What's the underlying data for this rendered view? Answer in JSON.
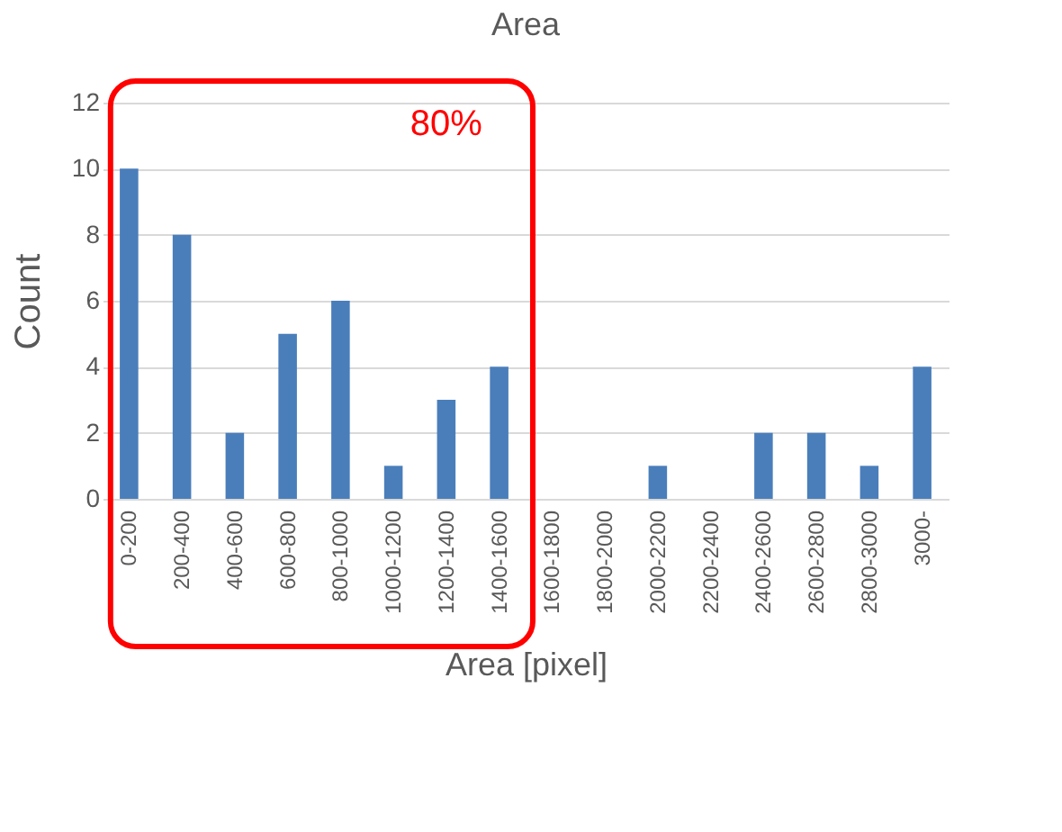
{
  "chart_data": {
    "type": "bar",
    "title": "Area",
    "xlabel": "Area [pixel]",
    "ylabel": "Count",
    "categories": [
      "0-200",
      "200-400",
      "400-600",
      "600-800",
      "800-1000",
      "1000-1200",
      "1200-1400",
      "1400-1600",
      "1600-1800",
      "1800-2000",
      "2000-2200",
      "2200-2400",
      "2400-2600",
      "2600-2800",
      "2800-3000",
      "3000-"
    ],
    "values": [
      10,
      8,
      2,
      5,
      6,
      1,
      3,
      4,
      0,
      0,
      1,
      0,
      2,
      2,
      1,
      4
    ],
    "color": "#4a7ebb",
    "ylim": [
      0,
      12
    ],
    "yticks": [
      0,
      2,
      4,
      6,
      8,
      10,
      12
    ],
    "grid": "y",
    "annotations": [
      "80%"
    ]
  }
}
